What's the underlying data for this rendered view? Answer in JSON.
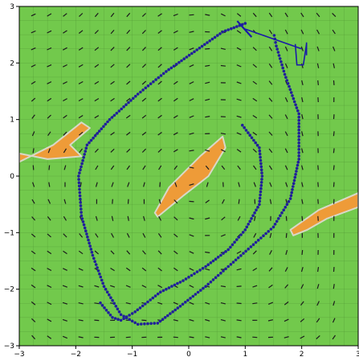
{
  "colors": {
    "field": "#72c94c",
    "field_dark": "#5fb33e",
    "grid": "#4c8f33",
    "arrow": "#1c1c1c",
    "hazard": "#ee9b38",
    "hazard_edge": "#d8d8c8",
    "trajectory": "#20209a",
    "agent": "#1a1aa8"
  },
  "axes": {
    "xlim": [
      -3,
      3
    ],
    "ylim": [
      -3,
      3
    ],
    "x_ticks": [
      {
        "value": -3,
        "label": "−3"
      },
      {
        "value": -2,
        "label": "−2"
      },
      {
        "value": -1,
        "label": "−1"
      },
      {
        "value": 0,
        "label": "0"
      },
      {
        "value": 1,
        "label": "1"
      },
      {
        "value": 2,
        "label": "2"
      },
      {
        "value": 3,
        "label": "3"
      }
    ],
    "y_ticks": [
      {
        "value": -3,
        "label": "−3"
      },
      {
        "value": -2,
        "label": "−2"
      },
      {
        "value": -1,
        "label": "−1"
      },
      {
        "value": 0,
        "label": "0"
      },
      {
        "value": 1,
        "label": "1"
      },
      {
        "value": 2,
        "label": "2"
      },
      {
        "value": 3,
        "label": "3"
      }
    ]
  },
  "hazards": [
    {
      "name": "hazard-left",
      "points": [
        [
          -3.0,
          0.25
        ],
        [
          -2.4,
          0.55
        ],
        [
          -1.9,
          0.95
        ],
        [
          -1.75,
          0.85
        ],
        [
          -2.1,
          0.55
        ],
        [
          -1.9,
          0.35
        ],
        [
          -2.5,
          0.3
        ],
        [
          -3.0,
          0.4
        ]
      ]
    },
    {
      "name": "hazard-center",
      "points": [
        [
          -0.6,
          -0.65
        ],
        [
          -0.35,
          -0.2
        ],
        [
          0.2,
          0.35
        ],
        [
          0.6,
          0.7
        ],
        [
          0.65,
          0.5
        ],
        [
          0.35,
          0.0
        ],
        [
          -0.1,
          -0.35
        ],
        [
          -0.55,
          -0.72
        ]
      ]
    },
    {
      "name": "hazard-right",
      "points": [
        [
          1.8,
          -0.95
        ],
        [
          2.3,
          -0.6
        ],
        [
          3.0,
          -0.3
        ],
        [
          3.0,
          -0.55
        ],
        [
          2.45,
          -0.75
        ],
        [
          2.1,
          -0.95
        ],
        [
          1.85,
          -1.05
        ]
      ]
    }
  ],
  "trajectory": [
    [
      1.0,
      2.7
    ],
    [
      0.6,
      2.55
    ],
    [
      0.1,
      2.2
    ],
    [
      -0.4,
      1.85
    ],
    [
      -0.9,
      1.45
    ],
    [
      -1.4,
      1.0
    ],
    [
      -1.8,
      0.55
    ],
    [
      -1.95,
      0.0
    ],
    [
      -1.9,
      -0.7
    ],
    [
      -1.7,
      -1.4
    ],
    [
      -1.5,
      -1.95
    ],
    [
      -1.2,
      -2.45
    ],
    [
      -0.9,
      -2.62
    ],
    [
      -0.55,
      -2.6
    ],
    [
      -0.15,
      -2.3
    ],
    [
      0.3,
      -1.95
    ],
    [
      0.7,
      -1.6
    ],
    [
      1.1,
      -1.25
    ],
    [
      1.5,
      -0.9
    ],
    [
      1.8,
      -0.4
    ],
    [
      1.95,
      0.3
    ],
    [
      1.95,
      1.1
    ],
    [
      1.7,
      1.8
    ],
    [
      1.55,
      2.3
    ],
    [
      1.5,
      2.55
    ]
  ],
  "trajectory2": [
    [
      0.95,
      0.9
    ],
    [
      1.25,
      0.5
    ],
    [
      1.3,
      0.0
    ],
    [
      1.25,
      -0.5
    ],
    [
      1.0,
      -0.95
    ],
    [
      0.7,
      -1.3
    ],
    [
      0.3,
      -1.6
    ],
    [
      -0.1,
      -1.85
    ],
    [
      -0.5,
      -2.05
    ],
    [
      -0.95,
      -2.4
    ],
    [
      -1.2,
      -2.55
    ],
    [
      -1.35,
      -2.5
    ],
    [
      -1.6,
      -2.2
    ]
  ],
  "agent": {
    "base": [
      1.0,
      2.6
    ],
    "arm_end": [
      2.0,
      2.25
    ],
    "label": ""
  }
}
